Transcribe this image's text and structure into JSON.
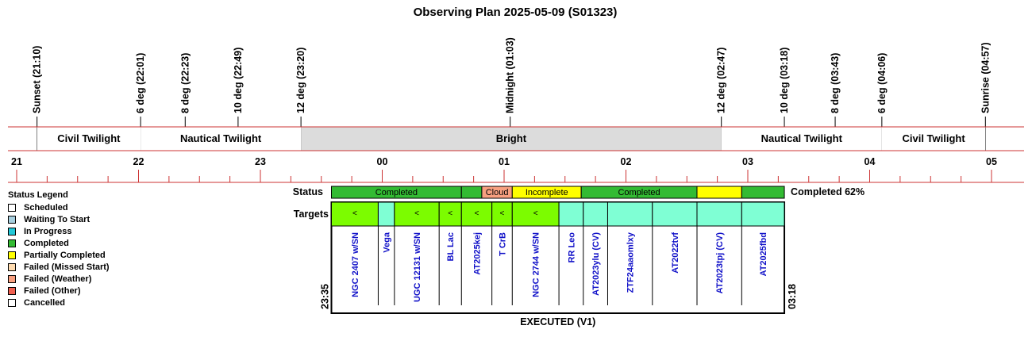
{
  "title": "Observing Plan 2025-05-09 (S01323)",
  "legend": {
    "title": "Status Legend",
    "items": [
      {
        "label": "Scheduled",
        "color": "#ffffff"
      },
      {
        "label": "Waiting To Start",
        "color": "#a8d0e0"
      },
      {
        "label": "In Progress",
        "color": "#22c8d8"
      },
      {
        "label": "Completed",
        "color": "#33bb33"
      },
      {
        "label": "Partially Completed",
        "color": "#ffff00"
      },
      {
        "label": "Failed (Missed Start)",
        "color": "#ffdcb0"
      },
      {
        "label": "Failed (Weather)",
        "color": "#f8a080"
      },
      {
        "label": "Failed (Other)",
        "color": "#f06050"
      },
      {
        "label": "Cancelled",
        "color": "#ffffff"
      }
    ]
  },
  "chart_data": {
    "type": "table",
    "time_axis": {
      "unit": "hour",
      "start_hour": 21.0,
      "end_hour": 29.0,
      "ticks": [
        "21",
        "22",
        "23",
        "00",
        "01",
        "02",
        "03",
        "04",
        "05"
      ]
    },
    "events": [
      {
        "label": "Sunset (21:10)",
        "t": 21.167
      },
      {
        "label": "6 deg (22:01)",
        "t": 22.017
      },
      {
        "label": "8 deg (22:23)",
        "t": 22.383
      },
      {
        "label": "10 deg (22:49)",
        "t": 22.817
      },
      {
        "label": "12 deg (23:20)",
        "t": 23.333
      },
      {
        "label": "Midnight (01:03)",
        "t": 25.05
      },
      {
        "label": "12 deg (02:47)",
        "t": 26.783
      },
      {
        "label": "10 deg (03:18)",
        "t": 27.3
      },
      {
        "label": "8 deg (03:43)",
        "t": 27.717
      },
      {
        "label": "6 deg (04:06)",
        "t": 28.1
      },
      {
        "label": "Sunrise (04:57)",
        "t": 28.95
      }
    ],
    "twilight": [
      {
        "label": "Civil Twilight",
        "start": 21.167,
        "end": 22.017,
        "color": "#ffffff"
      },
      {
        "label": "Nautical Twilight",
        "start": 22.017,
        "end": 23.333,
        "color": "#ffffff"
      },
      {
        "label": "Bright",
        "start": 23.333,
        "end": 26.783,
        "color": "#dcdcdc"
      },
      {
        "label": "Nautical Twilight",
        "start": 26.783,
        "end": 28.1,
        "color": "#ffffff"
      },
      {
        "label": "Civil Twilight",
        "start": 28.1,
        "end": 28.95,
        "color": "#ffffff"
      }
    ],
    "plan": {
      "status_label": "Status",
      "targets_label": "Targets",
      "start_label": "23:35",
      "end_label": "03:18",
      "start": 23.583,
      "end": 27.3,
      "completion_text": "Completed 62%",
      "footer": "EXECUTED (V1)",
      "status_bands": [
        {
          "label": "Completed",
          "start": 23.583,
          "end": 24.65,
          "color": "#33bb33"
        },
        {
          "label": "",
          "start": 24.65,
          "end": 24.817,
          "color": "#33bb33"
        },
        {
          "label": "Cloud",
          "start": 24.817,
          "end": 25.067,
          "color": "#f8a080"
        },
        {
          "label": "Incomplete",
          "start": 25.067,
          "end": 25.633,
          "color": "#ffff00"
        },
        {
          "label": "Completed",
          "start": 25.633,
          "end": 26.583,
          "color": "#33bb33"
        },
        {
          "label": "",
          "start": 26.583,
          "end": 26.95,
          "color": "#ffff00"
        },
        {
          "label": "",
          "start": 26.95,
          "end": 27.3,
          "color": "#33bb33"
        }
      ],
      "targets": [
        {
          "name": "NGC 2407 w/SN",
          "start": 23.583,
          "end": 23.967,
          "color": "#7cfc00",
          "mark": "<"
        },
        {
          "name": "Vega",
          "start": 23.967,
          "end": 24.1,
          "color": "#7fffd4",
          "mark": ""
        },
        {
          "name": "UGC 12131 w/SN",
          "start": 24.1,
          "end": 24.467,
          "color": "#7cfc00",
          "mark": "<"
        },
        {
          "name": "BL Lac",
          "start": 24.467,
          "end": 24.65,
          "color": "#7cfc00",
          "mark": "<"
        },
        {
          "name": "AT2025kej",
          "start": 24.65,
          "end": 24.9,
          "color": "#7cfc00",
          "mark": "<"
        },
        {
          "name": "T CrB",
          "start": 24.9,
          "end": 25.067,
          "color": "#7cfc00",
          "mark": "<"
        },
        {
          "name": "NGC 2744 w/SN",
          "start": 25.067,
          "end": 25.45,
          "color": "#7cfc00",
          "mark": "<"
        },
        {
          "name": "RR Leo",
          "start": 25.45,
          "end": 25.65,
          "color": "#7fffd4",
          "mark": ""
        },
        {
          "name": "AT2023ylu (CV)",
          "start": 25.65,
          "end": 25.85,
          "color": "#7fffd4",
          "mark": ""
        },
        {
          "name": "ZTF24aaomlxy",
          "start": 25.85,
          "end": 26.217,
          "color": "#7fffd4",
          "mark": ""
        },
        {
          "name": "AT2022tvf",
          "start": 26.217,
          "end": 26.583,
          "color": "#7fffd4",
          "mark": ""
        },
        {
          "name": "AT2023tpj (CV)",
          "start": 26.583,
          "end": 26.95,
          "color": "#7fffd4",
          "mark": ""
        },
        {
          "name": "AT2025fbd",
          "start": 26.95,
          "end": 27.3,
          "color": "#7fffd4",
          "mark": ""
        }
      ]
    }
  }
}
